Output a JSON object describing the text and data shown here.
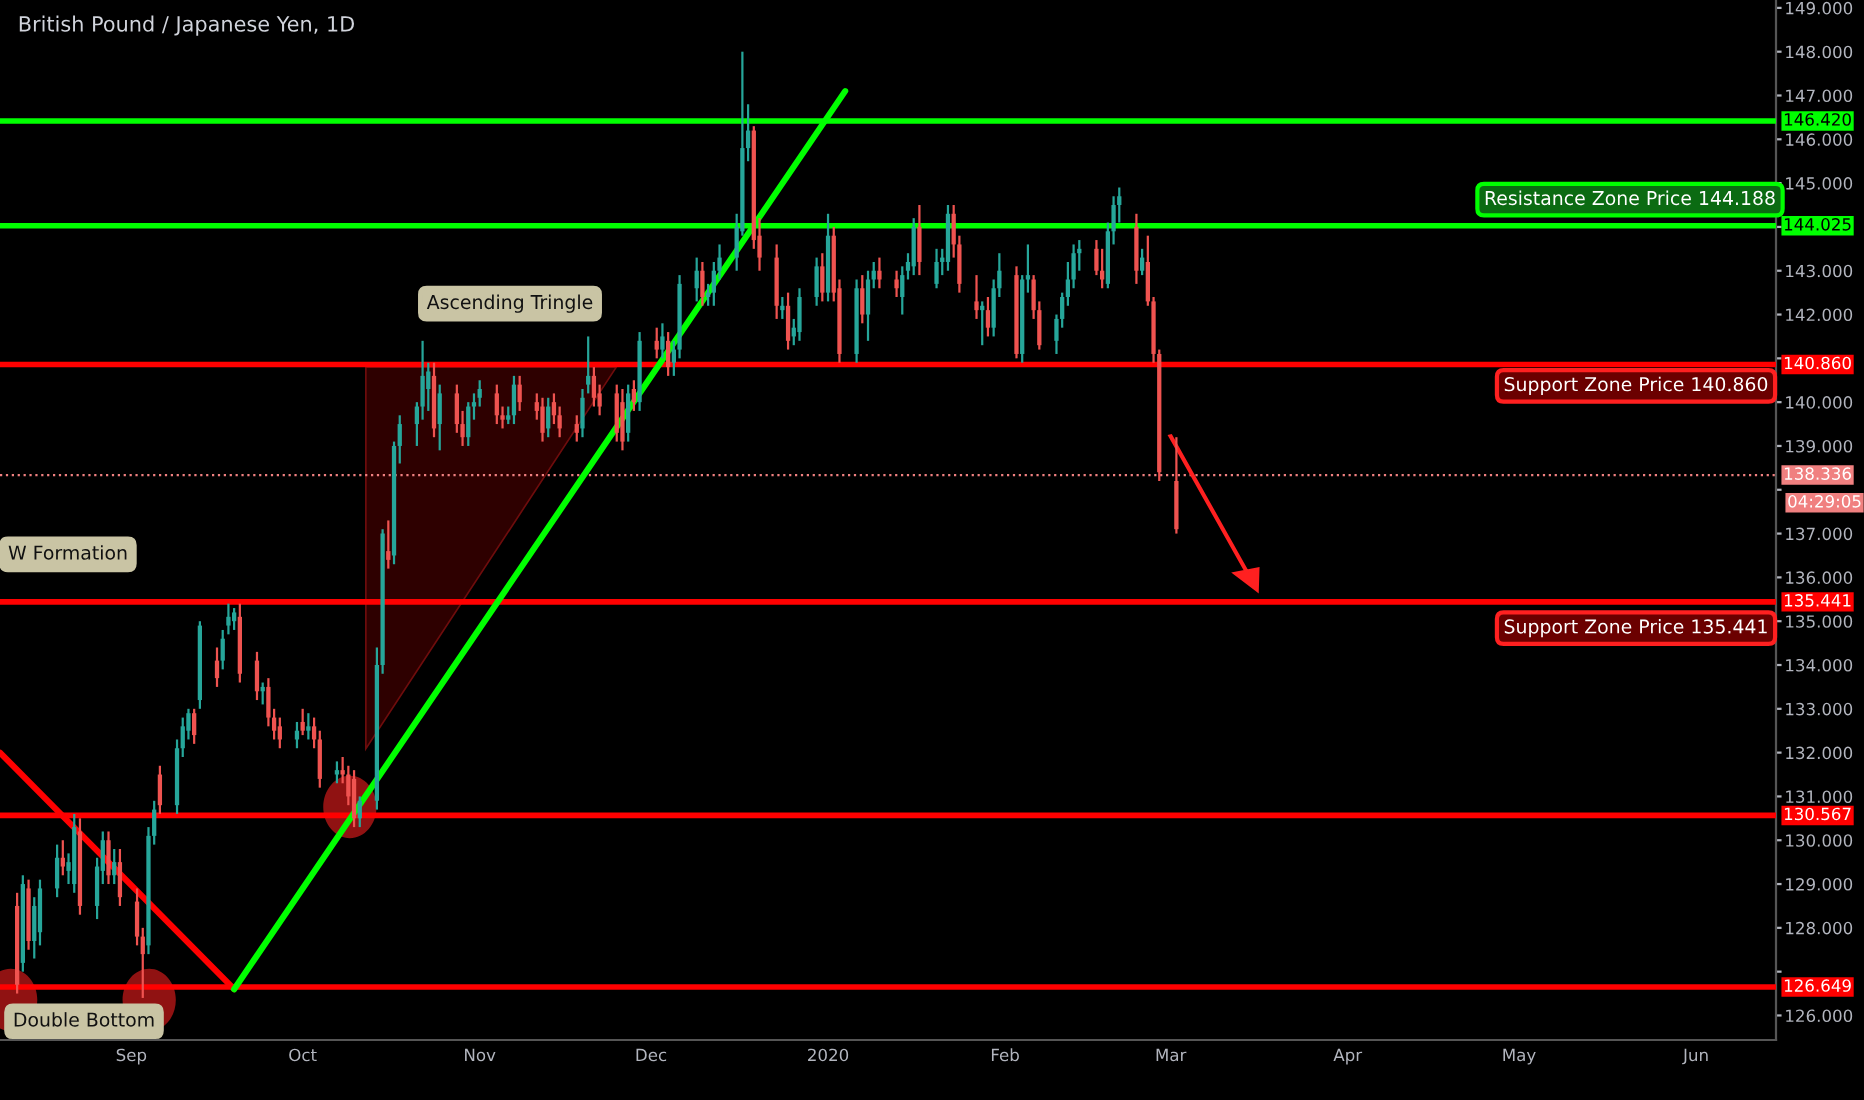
{
  "chart_data": {
    "type": "candlestick",
    "title": "British Pound / Japanese Yen, 1D",
    "x": [
      "2019-08-12",
      "2019-08-13",
      "2019-08-14",
      "2019-08-15",
      "2019-08-16",
      "2019-08-19",
      "2019-08-20",
      "2019-08-21",
      "2019-08-22",
      "2019-08-23",
      "2019-08-26",
      "2019-08-27",
      "2019-08-28",
      "2019-08-29",
      "2019-08-30",
      "2019-09-02",
      "2019-09-03",
      "2019-09-04",
      "2019-09-05",
      "2019-09-06",
      "2019-09-09",
      "2019-09-10",
      "2019-09-11",
      "2019-09-12",
      "2019-09-13",
      "2019-09-16",
      "2019-09-17",
      "2019-09-18",
      "2019-09-19",
      "2019-09-20",
      "2019-09-23",
      "2019-09-24",
      "2019-09-25",
      "2019-09-26",
      "2019-09-27",
      "2019-09-30",
      "2019-10-01",
      "2019-10-02",
      "2019-10-03",
      "2019-10-04",
      "2019-10-07",
      "2019-10-08",
      "2019-10-09",
      "2019-10-10",
      "2019-10-11",
      "2019-10-14",
      "2019-10-15",
      "2019-10-16",
      "2019-10-17",
      "2019-10-18",
      "2019-10-21",
      "2019-10-22",
      "2019-10-23",
      "2019-10-24",
      "2019-10-25",
      "2019-10-28",
      "2019-10-29",
      "2019-10-30",
      "2019-10-31",
      "2019-11-01",
      "2019-11-04",
      "2019-11-05",
      "2019-11-06",
      "2019-11-07",
      "2019-11-08",
      "2019-11-11",
      "2019-11-12",
      "2019-11-13",
      "2019-11-14",
      "2019-11-15",
      "2019-11-18",
      "2019-11-19",
      "2019-11-20",
      "2019-11-21",
      "2019-11-22",
      "2019-11-25",
      "2019-11-26",
      "2019-11-27",
      "2019-11-28",
      "2019-11-29",
      "2019-12-02",
      "2019-12-03",
      "2019-12-04",
      "2019-12-05",
      "2019-12-06",
      "2019-12-09",
      "2019-12-10",
      "2019-12-11",
      "2019-12-12",
      "2019-12-13",
      "2019-12-16",
      "2019-12-17",
      "2019-12-18",
      "2019-12-19",
      "2019-12-20",
      "2019-12-23",
      "2019-12-24",
      "2019-12-25",
      "2019-12-26",
      "2019-12-27",
      "2019-12-30",
      "2019-12-31",
      "2020-01-01",
      "2020-01-02",
      "2020-01-03",
      "2020-01-06",
      "2020-01-07",
      "2020-01-08",
      "2020-01-09",
      "2020-01-10",
      "2020-01-13",
      "2020-01-14",
      "2020-01-15",
      "2020-01-16",
      "2020-01-17",
      "2020-01-20",
      "2020-01-21",
      "2020-01-22",
      "2020-01-23",
      "2020-01-24",
      "2020-01-27",
      "2020-01-28",
      "2020-01-29",
      "2020-01-30",
      "2020-01-31",
      "2020-02-03",
      "2020-02-04",
      "2020-02-05",
      "2020-02-06",
      "2020-02-07",
      "2020-02-10",
      "2020-02-11",
      "2020-02-12",
      "2020-02-13",
      "2020-02-14",
      "2020-02-17",
      "2020-02-18",
      "2020-02-19",
      "2020-02-20",
      "2020-02-21",
      "2020-02-24",
      "2020-02-25",
      "2020-02-26",
      "2020-02-27",
      "2020-02-28",
      "2020-03-02"
    ],
    "ohlc": [
      [
        128.5,
        128.8,
        126.5,
        126.7
      ],
      [
        127.2,
        129.2,
        127.0,
        129.0
      ],
      [
        128.9,
        129.1,
        127.5,
        127.7
      ],
      [
        127.7,
        128.7,
        127.3,
        128.5
      ],
      [
        127.9,
        129.1,
        127.6,
        128.9
      ],
      [
        128.9,
        129.9,
        128.7,
        129.6
      ],
      [
        129.6,
        130.0,
        129.2,
        129.4
      ],
      [
        129.3,
        129.7,
        129.0,
        129.5
      ],
      [
        129.0,
        130.6,
        128.8,
        130.3
      ],
      [
        130.2,
        130.5,
        128.3,
        128.5
      ],
      [
        128.5,
        129.6,
        128.2,
        129.4
      ],
      [
        129.3,
        130.2,
        129.0,
        130.0
      ],
      [
        130.0,
        130.2,
        129.0,
        129.2
      ],
      [
        129.2,
        129.8,
        129.0,
        129.5
      ],
      [
        129.5,
        129.8,
        128.5,
        128.7
      ],
      [
        128.6,
        128.9,
        127.6,
        127.8
      ],
      [
        127.8,
        128.0,
        126.4,
        127.4
      ],
      [
        127.6,
        130.3,
        127.4,
        130.1
      ],
      [
        130.1,
        130.9,
        129.9,
        130.7
      ],
      [
        131.5,
        131.7,
        130.6,
        130.8
      ],
      [
        130.8,
        132.3,
        130.6,
        132.1
      ],
      [
        132.1,
        132.8,
        131.9,
        132.6
      ],
      [
        132.5,
        133.0,
        132.3,
        132.9
      ],
      [
        132.9,
        133.0,
        132.2,
        132.4
      ],
      [
        133.2,
        135.0,
        133.0,
        134.9
      ],
      [
        134.1,
        134.4,
        133.5,
        133.7
      ],
      [
        134.1,
        134.8,
        133.9,
        134.6
      ],
      [
        134.9,
        135.4,
        134.7,
        135.1
      ],
      [
        135.0,
        135.3,
        134.8,
        135.2
      ],
      [
        135.1,
        135.4,
        133.6,
        133.8
      ],
      [
        134.1,
        134.3,
        133.2,
        133.4
      ],
      [
        133.4,
        133.6,
        133.1,
        133.5
      ],
      [
        133.5,
        133.7,
        132.6,
        132.8
      ],
      [
        132.8,
        133.0,
        132.3,
        132.5
      ],
      [
        132.6,
        132.8,
        132.1,
        132.3
      ],
      [
        132.3,
        132.7,
        132.1,
        132.5
      ],
      [
        132.7,
        133.0,
        132.4,
        132.5
      ],
      [
        132.5,
        132.9,
        132.3,
        132.6
      ],
      [
        132.6,
        132.8,
        132.1,
        132.3
      ],
      [
        132.3,
        132.5,
        131.2,
        131.4
      ],
      [
        131.5,
        131.8,
        131.3,
        131.6
      ],
      [
        131.6,
        131.9,
        131.3,
        131.5
      ],
      [
        131.5,
        131.7,
        130.8,
        131.0
      ],
      [
        131.4,
        131.6,
        130.3,
        130.5
      ],
      [
        130.5,
        131.0,
        130.3,
        130.9
      ],
      [
        130.9,
        134.4,
        130.7,
        134.0
      ],
      [
        134.0,
        137.1,
        133.8,
        137.0
      ],
      [
        136.6,
        137.3,
        136.2,
        136.4
      ],
      [
        136.5,
        139.1,
        136.3,
        139.0
      ],
      [
        139.0,
        139.7,
        138.6,
        139.5
      ],
      [
        139.5,
        140.0,
        139.0,
        139.9
      ],
      [
        139.9,
        141.4,
        139.6,
        140.6
      ],
      [
        140.3,
        140.9,
        139.8,
        140.7
      ],
      [
        140.6,
        140.9,
        139.2,
        139.4
      ],
      [
        139.5,
        140.4,
        138.9,
        140.2
      ],
      [
        140.2,
        140.4,
        139.3,
        139.5
      ],
      [
        139.5,
        139.8,
        139.0,
        139.2
      ],
      [
        139.2,
        140.0,
        139.0,
        139.9
      ],
      [
        139.9,
        140.2,
        139.6,
        140.0
      ],
      [
        140.1,
        140.5,
        139.9,
        140.3
      ],
      [
        140.2,
        140.4,
        139.5,
        139.7
      ],
      [
        139.7,
        139.9,
        139.4,
        139.6
      ],
      [
        139.6,
        139.9,
        139.5,
        139.7
      ],
      [
        139.7,
        140.6,
        139.5,
        140.4
      ],
      [
        140.4,
        140.6,
        139.8,
        140.0
      ],
      [
        140.0,
        140.2,
        139.6,
        139.8
      ],
      [
        139.9,
        140.1,
        139.1,
        139.3
      ],
      [
        139.4,
        140.1,
        139.2,
        139.9
      ],
      [
        140.0,
        140.2,
        139.5,
        139.7
      ],
      [
        139.7,
        139.9,
        139.2,
        139.4
      ],
      [
        139.5,
        139.7,
        139.1,
        139.3
      ],
      [
        139.4,
        140.3,
        139.2,
        140.1
      ],
      [
        140.4,
        141.5,
        140.2,
        140.6
      ],
      [
        140.6,
        140.8,
        139.9,
        140.1
      ],
      [
        140.2,
        140.4,
        139.7,
        139.9
      ],
      [
        140.2,
        140.4,
        139.1,
        139.3
      ],
      [
        140.0,
        140.3,
        138.9,
        139.1
      ],
      [
        139.3,
        140.4,
        139.1,
        140.2
      ],
      [
        140.3,
        140.5,
        139.8,
        140.0
      ],
      [
        140.0,
        141.6,
        139.8,
        141.4
      ],
      [
        141.4,
        141.7,
        141.0,
        141.2
      ],
      [
        141.2,
        141.8,
        141.0,
        141.5
      ],
      [
        141.4,
        141.6,
        140.6,
        140.8
      ],
      [
        140.9,
        141.4,
        140.6,
        141.2
      ],
      [
        141.2,
        142.9,
        141.0,
        142.7
      ],
      [
        142.6,
        143.3,
        142.3,
        143.0
      ],
      [
        143.0,
        143.2,
        142.2,
        142.4
      ],
      [
        142.4,
        142.7,
        142.2,
        142.5
      ],
      [
        142.5,
        143.2,
        142.2,
        143.0
      ],
      [
        143.0,
        143.6,
        142.8,
        143.3
      ],
      [
        143.3,
        144.3,
        143.0,
        144.0
      ],
      [
        143.9,
        148.0,
        143.8,
        145.8
      ],
      [
        145.8,
        146.8,
        145.5,
        146.2
      ],
      [
        146.2,
        146.3,
        143.5,
        143.7
      ],
      [
        143.8,
        144.2,
        143.0,
        143.3
      ],
      [
        143.3,
        143.6,
        141.9,
        142.2
      ],
      [
        142.1,
        142.4,
        141.9,
        142.2
      ],
      [
        142.2,
        142.5,
        141.2,
        141.4
      ],
      [
        141.5,
        141.9,
        141.3,
        141.7
      ],
      [
        141.6,
        142.6,
        141.4,
        142.4
      ],
      [
        142.4,
        143.3,
        142.2,
        143.1
      ],
      [
        143.1,
        143.4,
        142.3,
        142.5
      ],
      [
        142.5,
        144.3,
        142.3,
        143.8
      ],
      [
        143.8,
        144.0,
        142.3,
        142.5
      ],
      [
        142.6,
        142.8,
        140.9,
        141.1
      ],
      [
        141.1,
        142.8,
        140.9,
        142.6
      ],
      [
        142.6,
        142.9,
        141.8,
        142.0
      ],
      [
        142.0,
        143.0,
        141.4,
        142.8
      ],
      [
        142.8,
        143.2,
        142.6,
        143.0
      ],
      [
        143.0,
        143.3,
        142.6,
        142.8
      ],
      [
        142.8,
        143.0,
        142.4,
        142.6
      ],
      [
        142.4,
        143.1,
        142.0,
        142.9
      ],
      [
        143.0,
        143.4,
        142.8,
        143.2
      ],
      [
        143.1,
        144.2,
        142.9,
        144.0
      ],
      [
        144.0,
        144.5,
        142.9,
        143.2
      ],
      [
        142.7,
        143.5,
        142.6,
        143.2
      ],
      [
        143.2,
        143.5,
        142.9,
        143.3
      ],
      [
        143.2,
        144.5,
        143.0,
        144.3
      ],
      [
        144.3,
        144.5,
        143.3,
        143.6
      ],
      [
        143.6,
        143.8,
        142.5,
        142.7
      ],
      [
        142.3,
        142.9,
        141.9,
        142.1
      ],
      [
        142.1,
        142.3,
        141.3,
        142.2
      ],
      [
        142.1,
        142.4,
        141.5,
        141.7
      ],
      [
        141.7,
        142.8,
        141.5,
        142.6
      ],
      [
        142.6,
        143.4,
        142.4,
        143.0
      ],
      [
        142.9,
        143.1,
        141.0,
        141.1
      ],
      [
        141.1,
        142.9,
        140.9,
        142.8
      ],
      [
        142.8,
        143.6,
        142.5,
        142.9
      ],
      [
        142.8,
        142.9,
        141.9,
        142.1
      ],
      [
        142.1,
        142.3,
        141.2,
        141.3
      ],
      [
        141.4,
        142.0,
        141.1,
        141.9
      ],
      [
        141.9,
        142.5,
        141.7,
        142.4
      ],
      [
        142.4,
        143.2,
        142.2,
        142.8
      ],
      [
        142.8,
        143.6,
        142.6,
        143.4
      ],
      [
        143.4,
        143.7,
        143.0,
        143.5
      ],
      [
        143.5,
        143.7,
        142.9,
        143.0
      ],
      [
        143.0,
        143.5,
        142.6,
        142.8
      ],
      [
        142.7,
        144.1,
        142.6,
        143.9
      ],
      [
        143.9,
        144.7,
        143.6,
        144.5
      ],
      [
        144.5,
        144.9,
        144.1,
        144.7
      ],
      [
        144.0,
        144.3,
        142.7,
        143.0
      ],
      [
        143.0,
        143.5,
        142.9,
        143.3
      ],
      [
        143.2,
        143.8,
        142.2,
        142.3
      ],
      [
        142.3,
        142.4,
        140.9,
        141.1
      ],
      [
        141.1,
        141.2,
        138.2,
        138.4
      ],
      [
        138.2,
        139.2,
        137.0,
        137.1
      ]
    ],
    "colors": [
      "#ef5350",
      "#26a69a",
      "#ef5350",
      "#26a69a",
      "#26a69a",
      "#26a69a",
      "#ef5350",
      "#26a69a",
      "#26a69a",
      "#ef5350",
      "#26a69a",
      "#26a69a",
      "#ef5350",
      "#26a69a",
      "#ef5350",
      "#ef5350",
      "#ef5350",
      "#26a69a",
      "#26a69a",
      "#ef5350",
      "#26a69a",
      "#26a69a",
      "#26a69a",
      "#ef5350",
      "#26a69a",
      "#ef5350",
      "#26a69a",
      "#26a69a",
      "#26a69a",
      "#ef5350",
      "#ef5350",
      "#26a69a",
      "#ef5350",
      "#ef5350",
      "#ef5350",
      "#26a69a",
      "#ef5350",
      "#26a69a",
      "#ef5350",
      "#ef5350",
      "#26a69a",
      "#ef5350",
      "#ef5350",
      "#ef5350",
      "#26a69a",
      "#26a69a",
      "#26a69a",
      "#ef5350",
      "#26a69a",
      "#26a69a",
      "#26a69a",
      "#26a69a",
      "#26a69a",
      "#ef5350",
      "#26a69a",
      "#ef5350",
      "#ef5350",
      "#26a69a",
      "#26a69a",
      "#26a69a",
      "#ef5350",
      "#ef5350",
      "#26a69a",
      "#26a69a",
      "#ef5350",
      "#ef5350",
      "#ef5350",
      "#26a69a",
      "#ef5350",
      "#ef5350",
      "#ef5350",
      "#26a69a",
      "#26a69a",
      "#ef5350",
      "#ef5350",
      "#ef5350",
      "#ef5350",
      "#26a69a",
      "#ef5350",
      "#26a69a",
      "#ef5350",
      "#26a69a",
      "#ef5350",
      "#26a69a",
      "#26a69a",
      "#26a69a",
      "#ef5350",
      "#26a69a",
      "#26a69a",
      "#26a69a",
      "#26a69a",
      "#26a69a",
      "#26a69a",
      "#ef5350",
      "#ef5350",
      "#ef5350",
      "#26a69a",
      "#ef5350",
      "#26a69a",
      "#26a69a",
      "#26a69a",
      "#ef5350",
      "#26a69a",
      "#ef5350",
      "#ef5350",
      "#26a69a",
      "#ef5350",
      "#26a69a",
      "#26a69a",
      "#ef5350",
      "#ef5350",
      "#26a69a",
      "#26a69a",
      "#26a69a",
      "#ef5350",
      "#26a69a",
      "#26a69a",
      "#26a69a",
      "#ef5350",
      "#ef5350",
      "#ef5350",
      "#26a69a",
      "#ef5350",
      "#26a69a",
      "#26a69a",
      "#ef5350",
      "#26a69a",
      "#26a69a",
      "#ef5350",
      "#ef5350",
      "#26a69a",
      "#26a69a",
      "#26a69a",
      "#26a69a",
      "#26a69a",
      "#ef5350",
      "#ef5350",
      "#26a69a",
      "#26a69a",
      "#26a69a",
      "#ef5350",
      "#26a69a",
      "#ef5350",
      "#ef5350",
      "#ef5350",
      "#ef5350"
    ],
    "series": [
      {
        "type": "line",
        "x": [
          "2019-08-09",
          "2019-09-19"
        ],
        "values": [
          132.0,
          126.6
        ],
        "color": "#ff0000"
      },
      {
        "type": "line",
        "x": [
          "2019-09-19",
          "2020-01-04"
        ],
        "values": [
          126.6,
          147.1
        ],
        "color": "#00ff00"
      }
    ],
    "xlim": [
      "2019-08-09",
      "2020-06-15"
    ],
    "xticks": [
      {
        "value": "2019-09-01",
        "label": "Sep"
      },
      {
        "value": "2019-10-01",
        "label": "Oct"
      },
      {
        "value": "2019-11-01",
        "label": "Nov"
      },
      {
        "value": "2019-12-01",
        "label": "Dec"
      },
      {
        "value": "2020-01-01",
        "label": "2020"
      },
      {
        "value": "2020-02-01",
        "label": "Feb"
      },
      {
        "value": "2020-03-01",
        "label": "Mar"
      },
      {
        "value": "2020-04-01",
        "label": "Apr"
      },
      {
        "value": "2020-05-01",
        "label": "May"
      },
      {
        "value": "2020-06-01",
        "label": "Jun"
      }
    ],
    "ylim": [
      125.44,
      149.18
    ],
    "yticks": [
      {
        "value": 126,
        "label": "126.000"
      },
      {
        "value": 127,
        "label": null
      },
      {
        "value": 128,
        "label": "128.000"
      },
      {
        "value": 129,
        "label": "129.000"
      },
      {
        "value": 130,
        "label": "130.000"
      },
      {
        "value": 131,
        "label": "131.000"
      },
      {
        "value": 132,
        "label": "132.000"
      },
      {
        "value": 133,
        "label": "133.000"
      },
      {
        "value": 134,
        "label": "134.000"
      },
      {
        "value": 135,
        "label": "135.000"
      },
      {
        "value": 136,
        "label": "136.000"
      },
      {
        "value": 137,
        "label": "137.000"
      },
      {
        "value": 138,
        "label": null
      },
      {
        "value": 139,
        "label": "139.000"
      },
      {
        "value": 140,
        "label": "140.000"
      },
      {
        "value": 141,
        "label": null
      },
      {
        "value": 142,
        "label": "142.000"
      },
      {
        "value": 143,
        "label": "143.000"
      },
      {
        "value": 144,
        "label": null
      },
      {
        "value": 145,
        "label": "145.000"
      },
      {
        "value": 146,
        "label": "146.000"
      },
      {
        "value": 147,
        "label": "147.000"
      },
      {
        "value": 148,
        "label": "148.000"
      },
      {
        "value": 149,
        "label": "149.000"
      }
    ],
    "ref_lines": [
      {
        "axis": "y",
        "value": 146.42,
        "label": "146.420",
        "color": "#00ff00"
      },
      {
        "axis": "y",
        "value": 144.025,
        "label": "144.025",
        "color": "#00ff00"
      },
      {
        "axis": "y",
        "value": 140.86,
        "label": "140.860",
        "color": "#ff0000"
      },
      {
        "axis": "y",
        "value": 138.336,
        "label": "138.336",
        "color": "#f08080",
        "line_style": "dotted"
      },
      {
        "axis": "y",
        "value": 135.441,
        "label": "135.441",
        "color": "#ff0000"
      },
      {
        "axis": "y",
        "value": 130.567,
        "label": "130.567",
        "color": "#ff0000"
      },
      {
        "axis": "y",
        "value": 126.649,
        "label": "126.649",
        "color": "#ff0000"
      }
    ],
    "annotations": [
      "Ascending Tringle",
      "W Formation",
      "Double Bottom",
      "Resistance Zone Price 144.188",
      "Support Zone Price 140.860",
      "Support Zone Price 135.441",
      "04:29:05"
    ],
    "grid": false,
    "legend": false
  }
}
